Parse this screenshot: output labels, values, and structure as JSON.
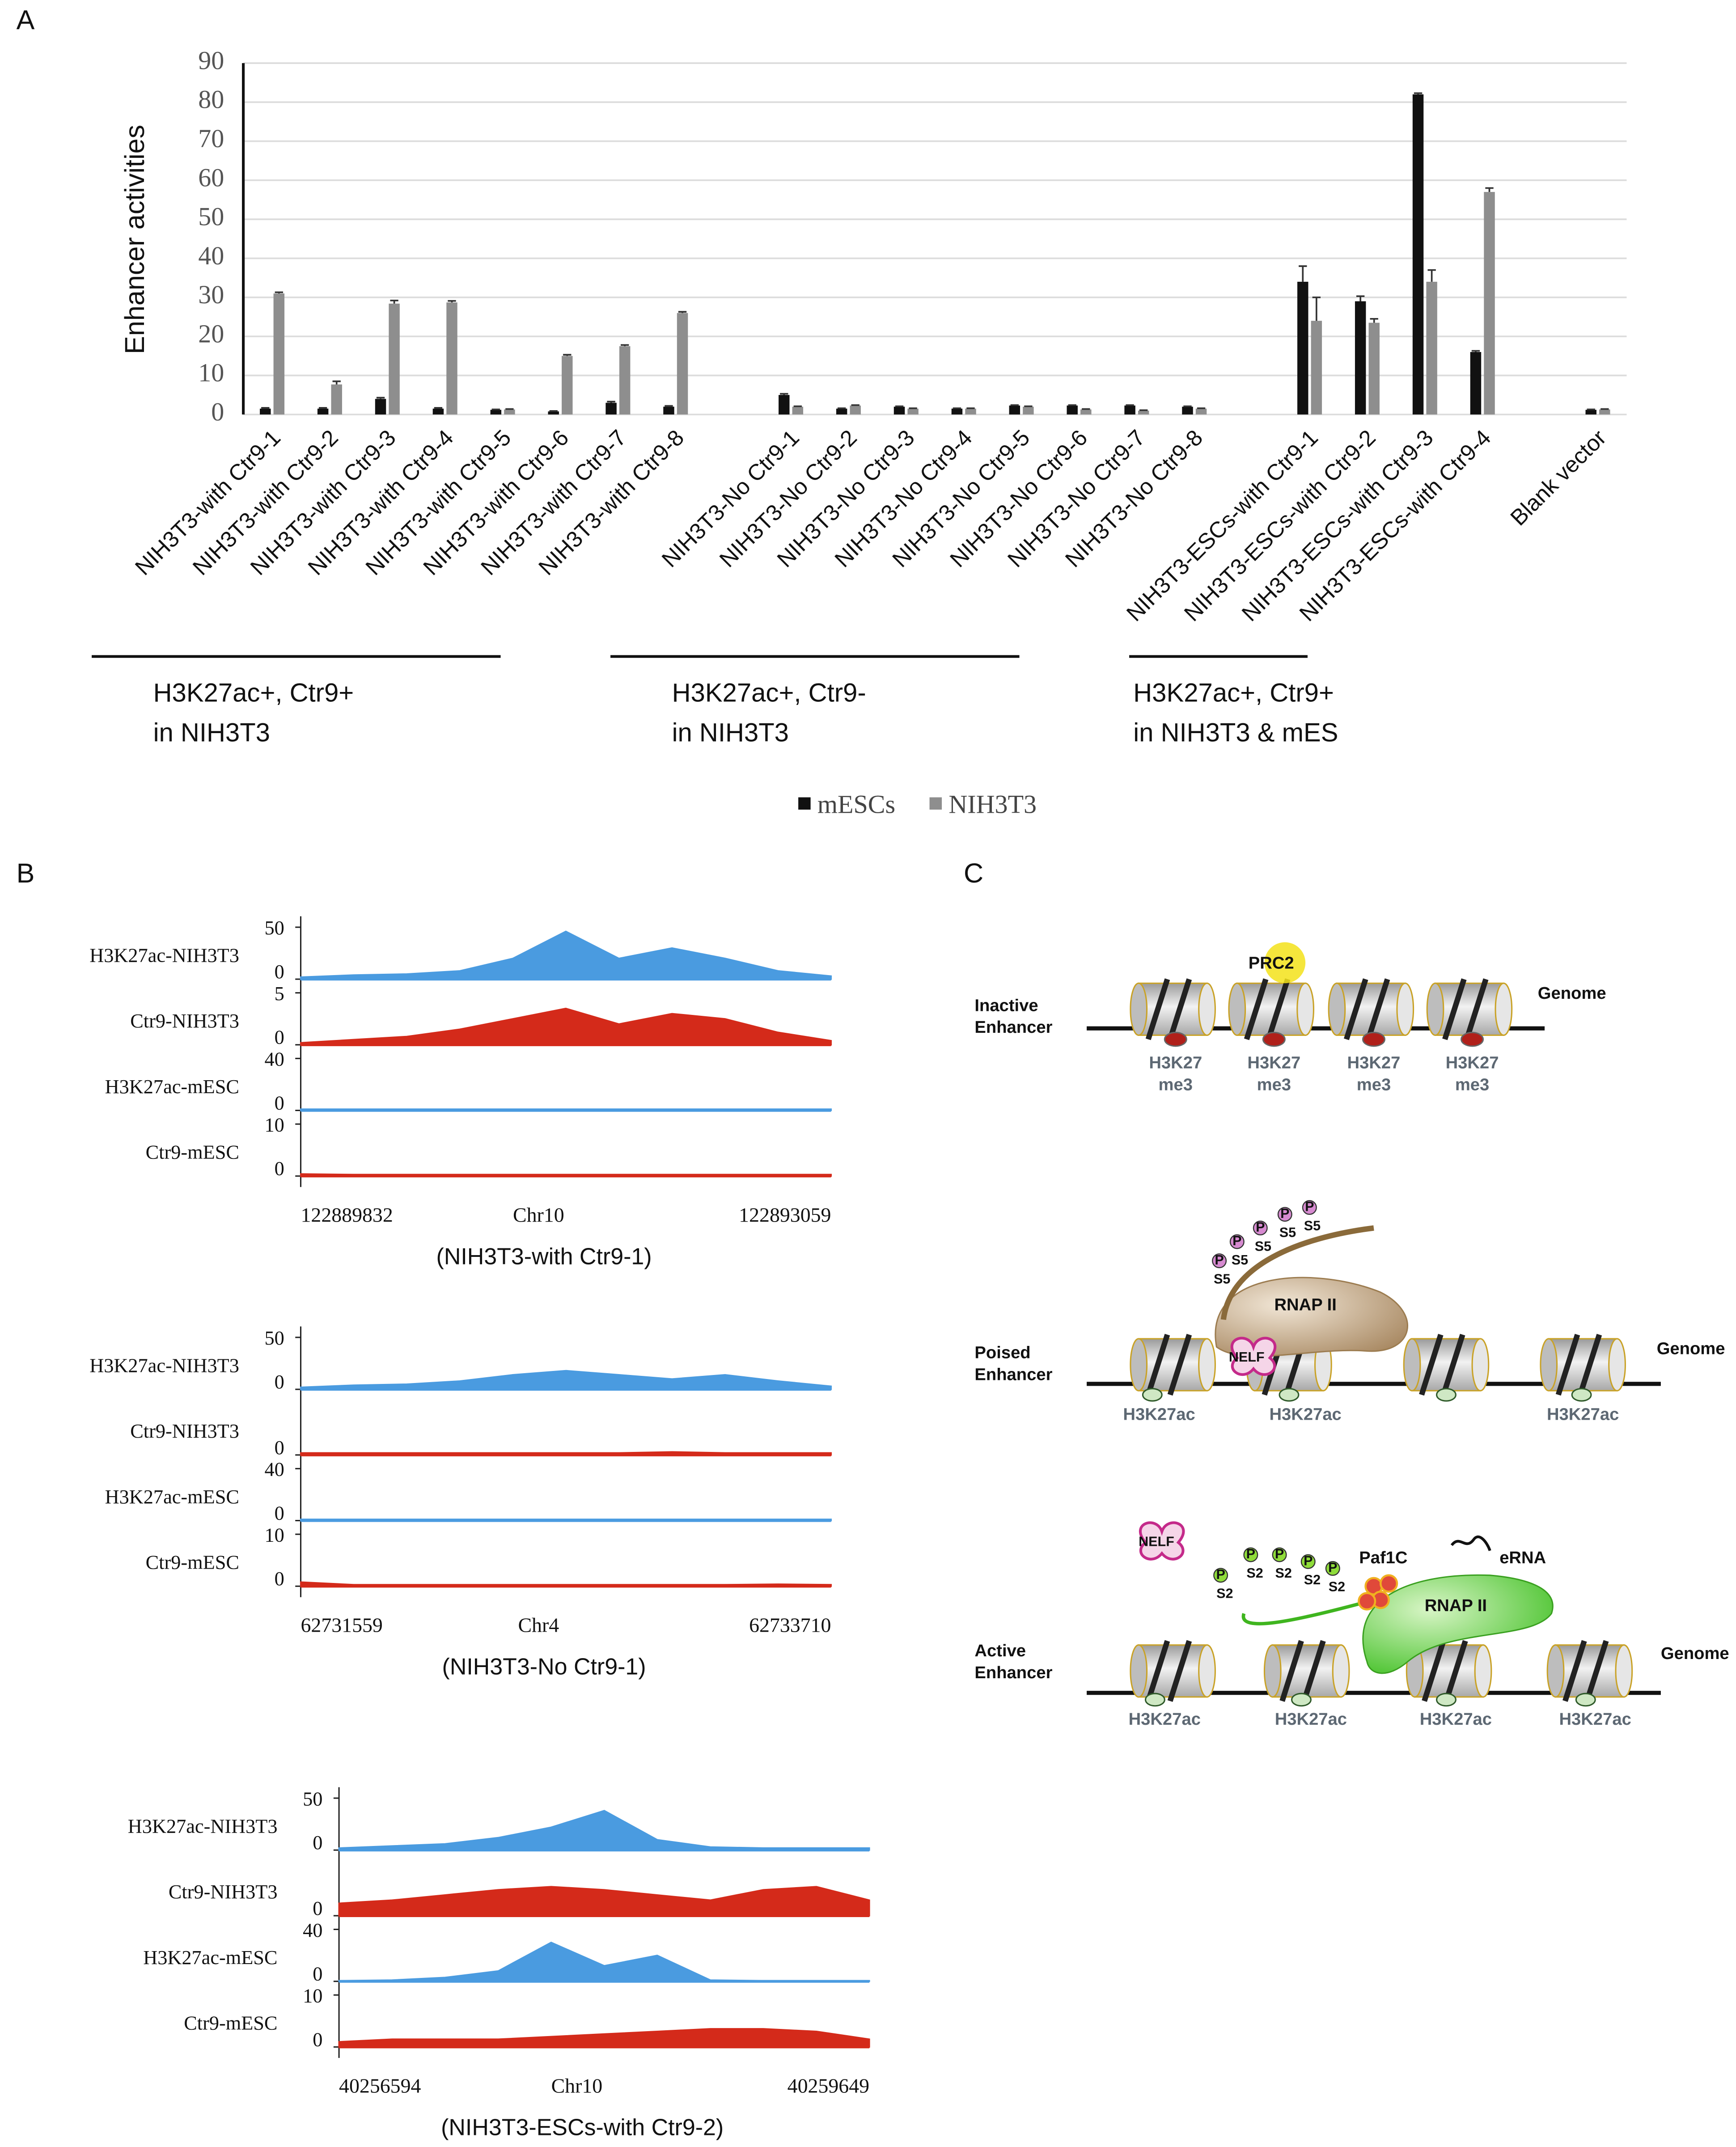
{
  "panel_labels": [
    "A",
    "B",
    "C"
  ],
  "chart_data": [
    {
      "type": "bar",
      "ylabel": "Enhancer activities",
      "ylim": [
        0,
        90
      ],
      "yticks": [
        0,
        10,
        20,
        30,
        40,
        50,
        60,
        70,
        80,
        90
      ],
      "grid": true,
      "categories": [
        "NIH3T3-with Ctr9-1",
        "NIH3T3-with Ctr9-2",
        "NIH3T3-with Ctr9-3",
        "NIH3T3-with Ctr9-4",
        "NIH3T3-with Ctr9-5",
        "NIH3T3-with Ctr9-6",
        "NIH3T3-with Ctr9-7",
        "NIH3T3-with Ctr9-8",
        null,
        "NIH3T3-No Ctr9-1",
        "NIH3T3-No Ctr9-2",
        "NIH3T3-No Ctr9-3",
        "NIH3T3-No Ctr9-4",
        "NIH3T3-No Ctr9-5",
        "NIH3T3-No Ctr9-6",
        "NIH3T3-No Ctr9-7",
        "NIH3T3-No Ctr9-8",
        null,
        "NIH3T3-ESCs-with Ctr9-1",
        "NIH3T3-ESCs-with Ctr9-2",
        "NIH3T3-ESCs-with Ctr9-3",
        "NIH3T3-ESCs-with Ctr9-4",
        null,
        "Blank vector"
      ],
      "series": [
        {
          "name": "mESCs",
          "color": "#111111",
          "values": [
            1.5,
            1.5,
            4,
            1.5,
            1.2,
            0.8,
            3,
            2,
            null,
            5,
            1.5,
            2,
            1.5,
            2.3,
            2.3,
            2.3,
            2,
            null,
            34,
            29,
            82,
            16,
            null,
            1.2
          ],
          "errors": [
            0.2,
            0.2,
            0.3,
            0.2,
            0.1,
            0.1,
            0.3,
            0.2,
            null,
            0.3,
            0.1,
            0.1,
            0.1,
            0.1,
            0.1,
            0.1,
            0.1,
            null,
            4,
            1.3,
            0.3,
            0.3,
            null,
            0.1
          ]
        },
        {
          "name": "NIH3T3",
          "color": "#8e8e8e",
          "values": [
            31,
            7.7,
            28.4,
            28.7,
            1.3,
            15,
            17.5,
            26,
            null,
            2,
            2.3,
            1.5,
            1.5,
            2,
            1.3,
            1,
            1.5,
            null,
            24,
            23.5,
            34,
            57,
            null,
            1.3
          ],
          "errors": [
            0.3,
            0.8,
            0.8,
            0.4,
            0.1,
            0.3,
            0.3,
            0.3,
            null,
            0.1,
            0.1,
            0.1,
            0.1,
            0.1,
            0.1,
            0.1,
            0.1,
            null,
            6,
            1,
            3,
            1,
            null,
            0.1
          ]
        }
      ],
      "groups": [
        {
          "lines": [
            "H3K27ac+, Ctr9+",
            "in NIH3T3"
          ]
        },
        {
          "lines": [
            "H3K27ac+, Ctr9-",
            "in NIH3T3"
          ]
        },
        {
          "lines": [
            "H3K27ac+, Ctr9+",
            "in NIH3T3 & mES"
          ]
        }
      ],
      "legend": "bottom"
    },
    {
      "type": "area",
      "title": "(NIH3T3-with Ctr9-1)",
      "chrom": "Chr10",
      "xlim": [
        122889832,
        122893059
      ],
      "xticks": [
        122889832,
        122893059
      ],
      "x": [
        122889832,
        122890155,
        122890477,
        122890800,
        122891123,
        122891445,
        122891768,
        122892091,
        122892414,
        122892736,
        122893059
      ],
      "series": [
        {
          "name": "H3K27ac-NIH3T3",
          "color": "#4a9be0",
          "ylim": [
            0,
            50
          ],
          "yticks": [
            0,
            50
          ],
          "values": [
            2,
            4,
            5,
            8,
            20,
            46,
            20,
            30,
            20,
            8,
            3
          ]
        },
        {
          "name": "Ctr9-NIH3T3",
          "color": "#d42a1a",
          "ylim": [
            0,
            5
          ],
          "yticks": [
            0,
            5
          ],
          "values": [
            0.2,
            0.5,
            0.8,
            1.5,
            2.5,
            3.5,
            2,
            3,
            2.5,
            1.2,
            0.4
          ]
        },
        {
          "name": "H3K27ac-mESC",
          "color": "#4a9be0",
          "ylim": [
            0,
            40
          ],
          "yticks": [
            0,
            40
          ],
          "values": [
            1,
            1,
            1,
            1,
            1,
            1,
            1,
            1,
            1,
            1,
            1
          ]
        },
        {
          "name": "Ctr9-mESC",
          "color": "#d42a1a",
          "ylim": [
            0,
            10
          ],
          "yticks": [
            0,
            10
          ],
          "values": [
            0.4,
            0.3,
            0.3,
            0.3,
            0.3,
            0.3,
            0.3,
            0.3,
            0.3,
            0.3,
            0.3
          ]
        }
      ]
    },
    {
      "type": "area",
      "title": "(NIH3T3-No Ctr9-1)",
      "chrom": "Chr4",
      "xlim": [
        62731559,
        62733710
      ],
      "xticks": [
        62731559,
        62733710
      ],
      "x": [
        62731559,
        62731774,
        62731989,
        62732204,
        62732419,
        62732635,
        62732850,
        62733065,
        62733280,
        62733495,
        62733710
      ],
      "series": [
        {
          "name": "H3K27ac-NIH3T3",
          "color": "#4a9be0",
          "ylim": [
            0,
            50
          ],
          "yticks": [
            0,
            50
          ],
          "values": [
            2,
            4,
            5,
            8,
            14,
            18,
            14,
            10,
            14,
            8,
            3
          ]
        },
        {
          "name": "Ctr9-NIH3T3",
          "color": "#d42a1a",
          "ylim": [
            0,
            5
          ],
          "yticks": [
            0
          ],
          "values": [
            0.2,
            0.2,
            0.2,
            0.2,
            0.2,
            0.2,
            0.2,
            0.3,
            0.2,
            0.2,
            0.2
          ]
        },
        {
          "name": "H3K27ac-mESC",
          "color": "#4a9be0",
          "ylim": [
            0,
            40
          ],
          "yticks": [
            0,
            40
          ],
          "values": [
            1,
            1,
            1,
            1,
            1,
            1,
            1,
            1,
            1,
            1,
            1
          ]
        },
        {
          "name": "Ctr9-mESC",
          "color": "#d42a1a",
          "ylim": [
            0,
            10
          ],
          "yticks": [
            0,
            10
          ],
          "values": [
            0.8,
            0.3,
            0.3,
            0.3,
            0.3,
            0.3,
            0.3,
            0.3,
            0.3,
            0.4,
            0.3
          ]
        }
      ]
    },
    {
      "type": "area",
      "title": "(NIH3T3-ESCs-with Ctr9-2)",
      "chrom": "Chr10",
      "xlim": [
        40256594,
        40259649
      ],
      "xticks": [
        40256594,
        40259649
      ],
      "x": [
        40256594,
        40256900,
        40257205,
        40257511,
        40257816,
        40258122,
        40258427,
        40258733,
        40259038,
        40259344,
        40259649
      ],
      "series": [
        {
          "name": "H3K27ac-NIH3T3",
          "color": "#4a9be0",
          "ylim": [
            0,
            50
          ],
          "yticks": [
            0,
            50
          ],
          "values": [
            2,
            4,
            6,
            12,
            22,
            38,
            10,
            3,
            2,
            2,
            2
          ]
        },
        {
          "name": "Ctr9-NIH3T3",
          "color": "#d42a1a",
          "ylim": [
            0,
            5
          ],
          "yticks": [
            0
          ],
          "values": [
            1.2,
            1.5,
            2,
            2.5,
            2.8,
            2.5,
            2,
            1.5,
            2.5,
            2.8,
            1.5
          ]
        },
        {
          "name": "H3K27ac-mESC",
          "color": "#4a9be0",
          "ylim": [
            0,
            40
          ],
          "yticks": [
            0,
            40
          ],
          "values": [
            0.5,
            1,
            3,
            8,
            30,
            12,
            20,
            1,
            0.5,
            0.5,
            0.5
          ]
        },
        {
          "name": "Ctr9-mESC",
          "color": "#d42a1a",
          "ylim": [
            0,
            10
          ],
          "yticks": [
            0,
            10
          ],
          "values": [
            1,
            1.5,
            1.5,
            1.5,
            2,
            2.5,
            3,
            3.5,
            3.5,
            3,
            1.5
          ]
        }
      ]
    }
  ],
  "diagram": {
    "inactive": {
      "label": [
        "Inactive",
        "Enhancer"
      ],
      "complex": "PRC2",
      "genome": "Genome",
      "marks": [
        [
          "H3K27",
          "me3"
        ],
        [
          "H3K27",
          "me3"
        ],
        [
          "H3K27",
          "me3"
        ],
        [
          "H3K27",
          "me3"
        ]
      ]
    },
    "poised": {
      "label": [
        "Poised",
        "Enhancer"
      ],
      "polymerase": "RNAP II",
      "nelf": "NELF",
      "phospho": [
        [
          "P",
          "S5"
        ],
        [
          "P",
          "S5"
        ],
        [
          "P",
          "S5"
        ],
        [
          "P",
          "S5"
        ],
        [
          "P",
          "S5"
        ]
      ],
      "genome": "Genome",
      "marks": [
        "H3K27ac",
        "H3K27ac",
        "H3K27ac"
      ]
    },
    "active": {
      "label": [
        "Active",
        "Enhancer"
      ],
      "nelf": "NELF",
      "phospho": [
        [
          "P",
          "S2"
        ],
        [
          "P",
          "S2"
        ],
        [
          "P",
          "S2"
        ],
        [
          "P",
          "S2"
        ],
        [
          "P",
          "S2"
        ]
      ],
      "complex": "Paf1C",
      "rna": "eRNA",
      "polymerase": "RNAP II",
      "genome": "Genome",
      "marks": [
        "H3K27ac",
        "H3K27ac",
        "H3K27ac",
        "H3K27ac"
      ]
    }
  }
}
